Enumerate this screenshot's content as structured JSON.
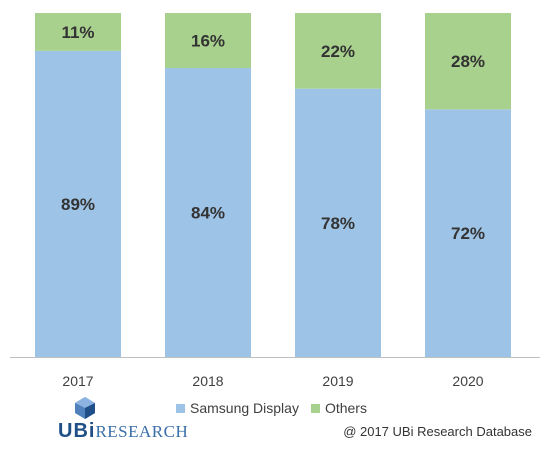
{
  "chart_data": {
    "type": "bar",
    "stacked": true,
    "percent_stacked": true,
    "categories": [
      "2017",
      "2018",
      "2019",
      "2020"
    ],
    "series": [
      {
        "name": "Samsung Display",
        "values": [
          89,
          84,
          78,
          72
        ],
        "labels": [
          "89%",
          "84%",
          "78%",
          "72%"
        ],
        "color": "#9dc3e6"
      },
      {
        "name": "Others",
        "values": [
          11,
          16,
          22,
          28
        ],
        "labels": [
          "11%",
          "16%",
          "22%",
          "28%"
        ],
        "color": "#a9d18e"
      }
    ],
    "ylim": [
      0,
      100
    ],
    "grid": false,
    "legend_position": "bottom"
  },
  "logo": {
    "mark": "UBi",
    "text": "RESEARCH"
  },
  "source_note": "@ 2017 UBi Research Database"
}
